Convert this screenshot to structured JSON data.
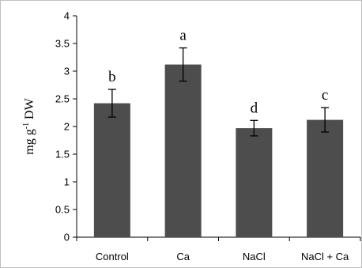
{
  "chart_data": {
    "type": "bar",
    "categories": [
      "Control",
      "Ca",
      "NaCl",
      "NaCl + Ca"
    ],
    "values": [
      2.42,
      3.12,
      1.97,
      2.12
    ],
    "errors": [
      0.25,
      0.3,
      0.14,
      0.22
    ],
    "significance_letters": [
      "b",
      "a",
      "d",
      "c"
    ],
    "ylabel": {
      "pre": "mg g",
      "sup": "-1",
      "post": " DW"
    },
    "ylim": [
      0,
      4
    ],
    "yticks": [
      "0",
      "0.5",
      "1",
      "1.5",
      "2",
      "2.5",
      "3",
      "3.5",
      "4"
    ],
    "bar_color": "#4d4d4d",
    "grid": false
  }
}
